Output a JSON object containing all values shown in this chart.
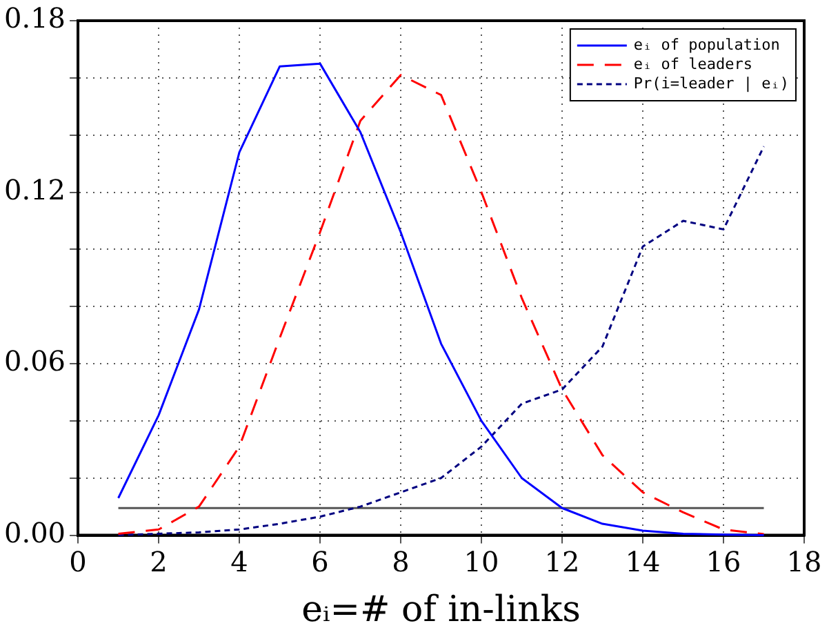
{
  "chart_data": {
    "type": "line",
    "xlabel": "eᵢ=# of in-links",
    "x": [
      1,
      2,
      3,
      4,
      5,
      6,
      7,
      8,
      9,
      10,
      11,
      12,
      13,
      14,
      15,
      16,
      17
    ],
    "xlim": [
      0,
      18
    ],
    "xticks": [
      0,
      2,
      4,
      6,
      8,
      10,
      12,
      14,
      16,
      18
    ],
    "ylim": [
      0,
      0.18
    ],
    "yticks": [
      {
        "value": 0,
        "label": "0.00"
      },
      {
        "value": 0.02,
        "label": null
      },
      {
        "value": 0.04,
        "label": null
      },
      {
        "value": 0.06,
        "label": "0.06"
      },
      {
        "value": 0.08,
        "label": null
      },
      {
        "value": 0.1,
        "label": null
      },
      {
        "value": 0.12,
        "label": "0.12"
      },
      {
        "value": 0.14,
        "label": null
      },
      {
        "value": 0.16,
        "label": null
      },
      {
        "value": 0.18,
        "label": "0.18"
      }
    ],
    "grid": true,
    "legend": "top right",
    "marker": "none",
    "series": [
      {
        "name": "eᵢ of population",
        "color": "#0000ff",
        "line_style": "solid",
        "values": [
          0.013,
          0.042,
          0.079,
          0.134,
          0.164,
          0.165,
          0.141,
          0.106,
          0.067,
          0.04,
          0.02,
          0.0095,
          0.004,
          0.0016,
          0.0005,
          0.0002,
          0
        ]
      },
      {
        "name": "eᵢ of leaders",
        "color": "#ff0000",
        "line_style": "dashed",
        "values": [
          0.0005,
          0.002,
          0.01,
          0.031,
          0.069,
          0.106,
          0.145,
          0.161,
          0.154,
          0.12,
          0.083,
          0.051,
          0.028,
          0.015,
          0.008,
          0.002,
          0.0004
        ]
      },
      {
        "name": "Pr(i=leader | eᵢ)",
        "color": "#000080",
        "line_style": "dotted",
        "values": [
          0,
          0.0005,
          0.001,
          0.002,
          0.004,
          0.0065,
          0.01,
          0.015,
          0.02,
          0.031,
          0.046,
          0.051,
          0.066,
          0.101,
          0.11,
          0.107,
          0.136
        ]
      },
      {
        "color": "#555555",
        "line_style": "solid",
        "x": [
          1,
          17
        ],
        "values": [
          0.0095,
          0.0095
        ]
      }
    ]
  }
}
